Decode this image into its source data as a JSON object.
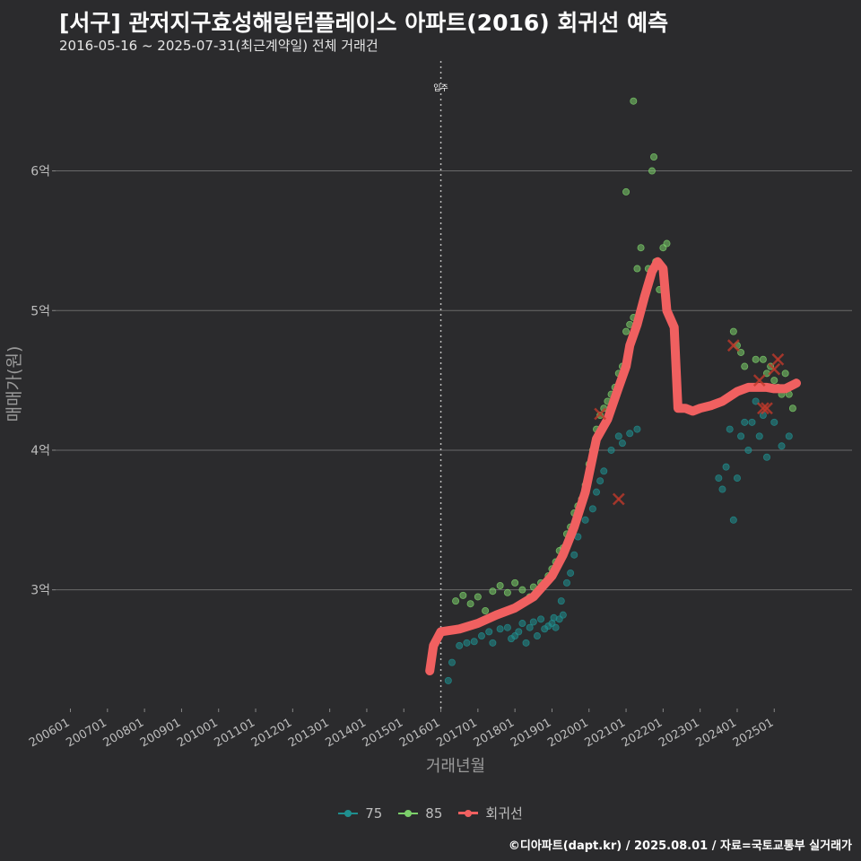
{
  "header": {
    "title": "[서구] 관저지구효성해링턴플레이스 아파트(2016) 회귀선 예측",
    "subtitle": "2016-05-16 ~ 2025-07-31(최근계약일) 전체 거래건"
  },
  "footer": {
    "credit": "©디아파트(dapt.kr) / 2025.08.01 / 자료=국토교통부 실거래가"
  },
  "legend": {
    "items": [
      {
        "label": "75",
        "color": "#1f8f8f"
      },
      {
        "label": "85",
        "color": "#7ccf6a"
      },
      {
        "label": "회귀선",
        "color": "#f06060"
      }
    ]
  },
  "chart_data": {
    "type": "scatter",
    "title": "[서구] 관저지구효성해링턴플레이스 아파트(2016) 회귀선 예측",
    "xlabel": "거래년월",
    "ylabel": "매매가(원)",
    "x_tick_labels": [
      "200601",
      "200701",
      "200801",
      "200901",
      "201001",
      "201101",
      "201201",
      "201301",
      "201401",
      "201501",
      "201601",
      "201701",
      "201801",
      "201901",
      "202001",
      "202101",
      "202201",
      "202301",
      "202401",
      "202501"
    ],
    "xlim": [
      2005.6,
      2027.1
    ],
    "ylim": [
      2.15,
      6.8
    ],
    "y_ticks": [
      3,
      4,
      5,
      6
    ],
    "y_tick_labels": [
      "3억",
      "4억",
      "5억",
      "6억"
    ],
    "y_unit": "억",
    "vline": {
      "x": 2016.0,
      "label": "입주"
    },
    "series": [
      {
        "name": "75",
        "color": "#1f8f8f",
        "points": [
          [
            2016.2,
            2.35
          ],
          [
            2016.3,
            2.48
          ],
          [
            2016.5,
            2.6
          ],
          [
            2016.7,
            2.62
          ],
          [
            2016.9,
            2.63
          ],
          [
            2017.1,
            2.67
          ],
          [
            2017.3,
            2.7
          ],
          [
            2017.4,
            2.62
          ],
          [
            2017.6,
            2.72
          ],
          [
            2017.8,
            2.73
          ],
          [
            2017.9,
            2.65
          ],
          [
            2018.0,
            2.67
          ],
          [
            2018.1,
            2.7
          ],
          [
            2018.2,
            2.76
          ],
          [
            2018.3,
            2.62
          ],
          [
            2018.4,
            2.73
          ],
          [
            2018.5,
            2.77
          ],
          [
            2018.6,
            2.67
          ],
          [
            2018.7,
            2.79
          ],
          [
            2018.8,
            2.72
          ],
          [
            2018.9,
            2.74
          ],
          [
            2019.0,
            2.76
          ],
          [
            2019.05,
            2.8
          ],
          [
            2019.1,
            2.73
          ],
          [
            2019.2,
            2.79
          ],
          [
            2019.25,
            2.92
          ],
          [
            2019.3,
            2.82
          ],
          [
            2019.4,
            3.05
          ],
          [
            2019.5,
            3.12
          ],
          [
            2019.6,
            3.25
          ],
          [
            2019.7,
            3.38
          ],
          [
            2019.9,
            3.5
          ],
          [
            2020.1,
            3.58
          ],
          [
            2020.2,
            3.7
          ],
          [
            2020.3,
            3.78
          ],
          [
            2020.4,
            3.85
          ],
          [
            2020.6,
            4.0
          ],
          [
            2020.8,
            4.1
          ],
          [
            2020.9,
            4.05
          ],
          [
            2021.1,
            4.12
          ],
          [
            2021.3,
            4.15
          ],
          [
            2023.5,
            3.8
          ],
          [
            2023.6,
            3.72
          ],
          [
            2023.7,
            3.88
          ],
          [
            2023.8,
            4.15
          ],
          [
            2023.9,
            3.5
          ],
          [
            2024.0,
            3.8
          ],
          [
            2024.1,
            4.1
          ],
          [
            2024.2,
            4.2
          ],
          [
            2024.3,
            4.0
          ],
          [
            2024.4,
            4.2
          ],
          [
            2024.5,
            4.35
          ],
          [
            2024.6,
            4.1
          ],
          [
            2024.7,
            4.25
          ],
          [
            2024.8,
            3.95
          ],
          [
            2025.0,
            4.2
          ],
          [
            2025.2,
            4.03
          ],
          [
            2025.4,
            4.1
          ]
        ]
      },
      {
        "name": "85",
        "color": "#7ccf6a",
        "points": [
          [
            2016.4,
            2.92
          ],
          [
            2016.6,
            2.96
          ],
          [
            2016.8,
            2.9
          ],
          [
            2017.0,
            2.95
          ],
          [
            2017.2,
            2.85
          ],
          [
            2017.4,
            2.99
          ],
          [
            2017.6,
            3.03
          ],
          [
            2017.8,
            2.98
          ],
          [
            2018.0,
            3.05
          ],
          [
            2018.2,
            3.0
          ],
          [
            2018.4,
            2.95
          ],
          [
            2018.5,
            3.02
          ],
          [
            2018.7,
            3.05
          ],
          [
            2018.9,
            3.1
          ],
          [
            2019.0,
            3.15
          ],
          [
            2019.1,
            3.2
          ],
          [
            2019.2,
            3.28
          ],
          [
            2019.3,
            3.3
          ],
          [
            2019.4,
            3.4
          ],
          [
            2019.5,
            3.45
          ],
          [
            2019.6,
            3.55
          ],
          [
            2019.7,
            3.6
          ],
          [
            2019.8,
            3.65
          ],
          [
            2019.9,
            3.75
          ],
          [
            2020.0,
            3.9
          ],
          [
            2020.1,
            4.0
          ],
          [
            2020.2,
            4.15
          ],
          [
            2020.3,
            4.25
          ],
          [
            2020.4,
            4.3
          ],
          [
            2020.5,
            4.35
          ],
          [
            2020.6,
            4.4
          ],
          [
            2020.7,
            4.45
          ],
          [
            2020.8,
            4.55
          ],
          [
            2020.9,
            4.6
          ],
          [
            2021.0,
            4.85
          ],
          [
            2021.1,
            4.9
          ],
          [
            2021.2,
            4.95
          ],
          [
            2021.3,
            5.3
          ],
          [
            2021.4,
            5.45
          ],
          [
            2021.5,
            5.1
          ],
          [
            2021.6,
            5.3
          ],
          [
            2021.7,
            6.0
          ],
          [
            2021.75,
            6.1
          ],
          [
            2021.8,
            5.35
          ],
          [
            2021.9,
            5.15
          ],
          [
            2022.0,
            5.45
          ],
          [
            2022.1,
            5.48
          ],
          [
            2021.2,
            6.5
          ],
          [
            2021.0,
            5.85
          ],
          [
            2023.9,
            4.85
          ],
          [
            2024.0,
            4.75
          ],
          [
            2024.1,
            4.7
          ],
          [
            2024.2,
            4.6
          ],
          [
            2024.5,
            4.65
          ],
          [
            2024.7,
            4.65
          ],
          [
            2024.8,
            4.55
          ],
          [
            2024.9,
            4.6
          ],
          [
            2025.0,
            4.5
          ],
          [
            2025.1,
            4.45
          ],
          [
            2025.2,
            4.4
          ],
          [
            2025.3,
            4.55
          ],
          [
            2025.4,
            4.4
          ],
          [
            2025.5,
            4.3
          ]
        ]
      },
      {
        "name": "회귀선",
        "color": "#f06060",
        "points": [
          [
            2015.7,
            2.42
          ],
          [
            2015.8,
            2.6
          ],
          [
            2016.0,
            2.7
          ],
          [
            2016.5,
            2.72
          ],
          [
            2017.0,
            2.76
          ],
          [
            2017.5,
            2.82
          ],
          [
            2018.0,
            2.87
          ],
          [
            2018.5,
            2.95
          ],
          [
            2019.0,
            3.1
          ],
          [
            2019.3,
            3.25
          ],
          [
            2019.6,
            3.45
          ],
          [
            2019.9,
            3.7
          ],
          [
            2020.2,
            4.08
          ],
          [
            2020.5,
            4.22
          ],
          [
            2020.8,
            4.45
          ],
          [
            2021.0,
            4.6
          ],
          [
            2021.1,
            4.75
          ],
          [
            2021.3,
            4.9
          ],
          [
            2021.5,
            5.1
          ],
          [
            2021.7,
            5.28
          ],
          [
            2021.85,
            5.35
          ],
          [
            2022.0,
            5.3
          ],
          [
            2022.1,
            5.0
          ],
          [
            2022.3,
            4.88
          ],
          [
            2022.4,
            4.3
          ],
          [
            2022.6,
            4.3
          ],
          [
            2022.8,
            4.28
          ],
          [
            2023.0,
            4.3
          ],
          [
            2023.3,
            4.32
          ],
          [
            2023.6,
            4.35
          ],
          [
            2024.0,
            4.42
          ],
          [
            2024.3,
            4.45
          ],
          [
            2024.8,
            4.45
          ],
          [
            2025.0,
            4.44
          ],
          [
            2025.3,
            4.44
          ],
          [
            2025.6,
            4.48
          ]
        ]
      }
    ],
    "outliers": [
      [
        2020.3,
        4.26
      ],
      [
        2020.8,
        3.65
      ],
      [
        2023.9,
        4.75
      ],
      [
        2024.6,
        4.5
      ],
      [
        2024.7,
        4.3
      ],
      [
        2024.8,
        4.3
      ],
      [
        2025.0,
        4.58
      ],
      [
        2025.1,
        4.65
      ]
    ]
  }
}
